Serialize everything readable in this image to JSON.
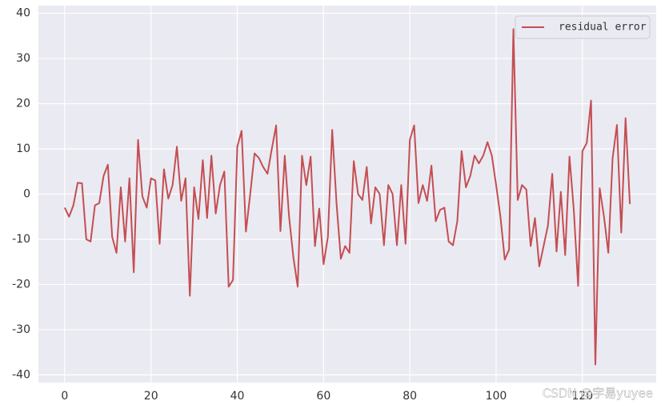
{
  "chart_data": {
    "type": "line",
    "x": [
      0,
      1,
      2,
      3,
      4,
      5,
      6,
      7,
      8,
      9,
      10,
      11,
      12,
      13,
      14,
      15,
      16,
      17,
      18,
      19,
      20,
      21,
      22,
      23,
      24,
      25,
      26,
      27,
      28,
      29,
      30,
      31,
      32,
      33,
      34,
      35,
      36,
      37,
      38,
      39,
      40,
      41,
      42,
      43,
      44,
      45,
      46,
      47,
      48,
      49,
      50,
      51,
      52,
      53,
      54,
      55,
      56,
      57,
      58,
      59,
      60,
      61,
      62,
      63,
      64,
      65,
      66,
      67,
      68,
      69,
      70,
      71,
      72,
      73,
      74,
      75,
      76,
      77,
      78,
      79,
      80,
      81,
      82,
      83,
      84,
      85,
      86,
      87,
      88,
      89,
      90,
      91,
      92,
      93,
      94,
      95,
      96,
      97,
      98,
      99,
      100,
      101,
      102,
      103,
      104,
      105,
      106,
      107,
      108,
      109,
      110,
      111,
      112,
      113,
      114,
      115,
      116,
      117,
      118,
      119,
      120,
      121,
      122,
      123,
      124,
      125,
      126,
      127,
      128,
      129,
      130,
      131
    ],
    "series": [
      {
        "name": "residual error",
        "color": "#c44e52",
        "values": [
          -3,
          -5,
          -2.5,
          2.5,
          2.4,
          -10,
          -10.5,
          -2.5,
          -2,
          4,
          6.5,
          -9.5,
          -13,
          1.5,
          -10.5,
          3.5,
          -17.3,
          12,
          -0.5,
          -3,
          3.5,
          3,
          -11,
          5.5,
          -1,
          2,
          10.5,
          -1.5,
          3.5,
          -22.5,
          1.5,
          -5.5,
          7.5,
          -5.3,
          8.5,
          -4.3,
          2,
          5,
          -20.5,
          -19,
          10.5,
          14,
          -8.3,
          0,
          9,
          8,
          6,
          4.5,
          10,
          15.2,
          -8.2,
          8.5,
          -5,
          -14,
          -20.5,
          8.5,
          2,
          8.3,
          -11.5,
          -3.2,
          -15.5,
          -9.5,
          14.2,
          -2,
          -14.3,
          -11.5,
          -13,
          7.3,
          0,
          -1.3,
          6,
          -6.5,
          1.5,
          0,
          -11.3,
          2,
          0,
          -11.3,
          2,
          -11,
          12,
          15.2,
          -2,
          2,
          -1.5,
          6.3,
          -6,
          -3.5,
          -3,
          -10.5,
          -11.3,
          -6,
          9.5,
          1.5,
          4,
          8.5,
          6.8,
          8.5,
          11.5,
          8.5,
          2,
          -5,
          -14.5,
          -12.3,
          36.5,
          -1.3,
          2,
          1,
          -11.5,
          -5.3,
          -16,
          -11.5,
          -7,
          4.5,
          -12.7,
          0.5,
          -13.5,
          8.3,
          -3.5,
          -20.3,
          9.5,
          11.3,
          20.7,
          -37.7,
          1.3,
          -5,
          -13,
          8,
          15.3,
          -8.5,
          16.8,
          -2.2
        ]
      }
    ],
    "xlim": [
      -6.1,
      137.1
    ],
    "xticks": [
      0,
      20,
      40,
      60,
      80,
      100,
      120
    ],
    "ylim": [
      -41.7,
      41.7
    ],
    "yticks": [
      -40,
      -30,
      -20,
      -10,
      0,
      10,
      20,
      30,
      40
    ],
    "grid": true,
    "legend": "upper right",
    "watermark": "CSDN @宇易yuyee"
  }
}
